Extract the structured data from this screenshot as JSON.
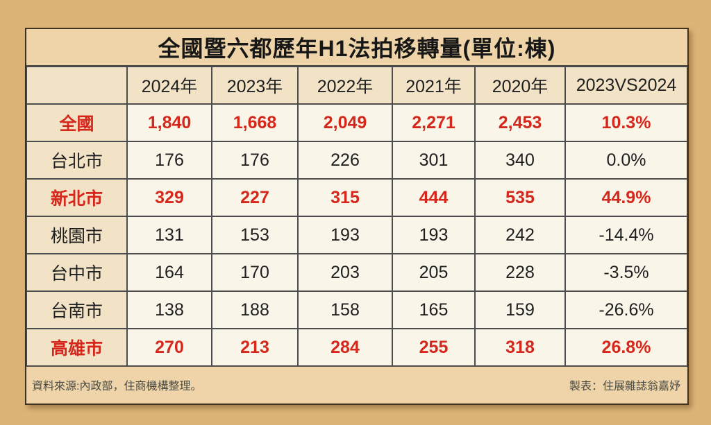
{
  "title": "全國暨六都歷年H1法拍移轉量(單位:棟)",
  "footer": {
    "source": "資料來源:內政部，住商機構整理。",
    "credit": "製表：住展雜誌翁嘉妤"
  },
  "colors": {
    "page_background": "#ddb478",
    "panel_background": "#eed4a8",
    "header_cell_background": "#f2e3c7",
    "data_cell_background": "#faf5e9",
    "highlight_red": "#d5271c",
    "text_black": "#1f1f1f",
    "grid_line": "#4c4c4c"
  },
  "chart_data": {
    "type": "table",
    "title": "全國暨六都歷年H1法拍移轉量(單位:棟)",
    "columns": [
      "",
      "2024年",
      "2023年",
      "2022年",
      "2021年",
      "2020年",
      "2023VS2024"
    ],
    "rows": [
      {
        "label": "全國",
        "values": [
          "1,840",
          "1,668",
          "2,049",
          "2,271",
          "2,453",
          "10.3%"
        ],
        "emphasis": true
      },
      {
        "label": "台北市",
        "values": [
          "176",
          "176",
          "226",
          "301",
          "340",
          "0.0%"
        ],
        "emphasis": false
      },
      {
        "label": "新北市",
        "values": [
          "329",
          "227",
          "315",
          "444",
          "535",
          "44.9%"
        ],
        "emphasis": true
      },
      {
        "label": "桃園市",
        "values": [
          "131",
          "153",
          "193",
          "193",
          "242",
          "-14.4%"
        ],
        "emphasis": false
      },
      {
        "label": "台中市",
        "values": [
          "164",
          "170",
          "203",
          "205",
          "228",
          "-3.5%"
        ],
        "emphasis": false
      },
      {
        "label": "台南市",
        "values": [
          "138",
          "188",
          "158",
          "165",
          "159",
          "-26.6%"
        ],
        "emphasis": false
      },
      {
        "label": "高雄市",
        "values": [
          "270",
          "213",
          "284",
          "255",
          "318",
          "26.8%"
        ],
        "emphasis": true
      }
    ]
  }
}
